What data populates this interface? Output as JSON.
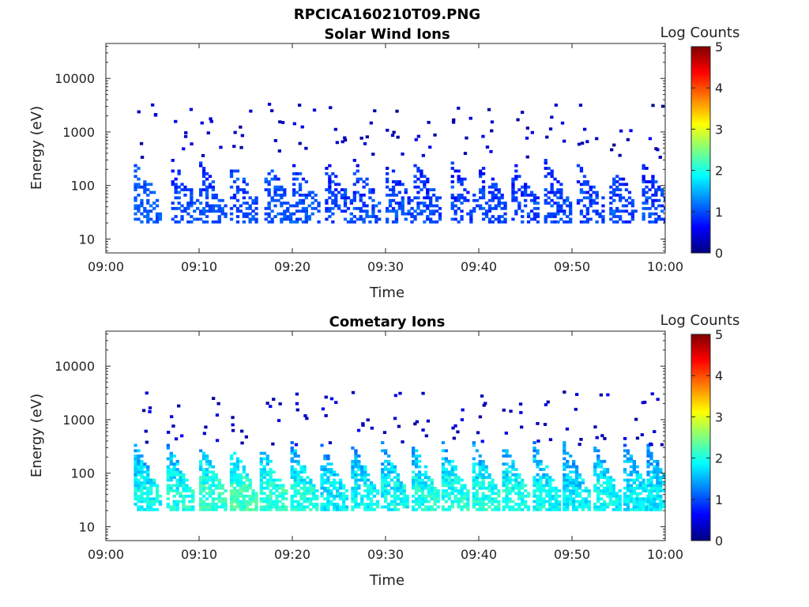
{
  "title": "RPCICA160210T09.PNG",
  "colorbar": {
    "colors": [
      "#00007f",
      "#0000ff",
      "#007fff",
      "#00ffff",
      "#7fff7f",
      "#ffff00",
      "#ff7f00",
      "#ff0000",
      "#7f0000"
    ]
  },
  "chart_data": [
    {
      "type": "heatmap",
      "title": "Solar Wind Ions",
      "xlabel": "Time",
      "ylabel": "Energy (eV)",
      "x_ticks": [
        "09:00",
        "09:10",
        "09:20",
        "09:30",
        "09:40",
        "09:50",
        "10:00"
      ],
      "x_range_min": [
        0,
        60
      ],
      "y_ticks": [
        "10",
        "100",
        "1000",
        "10000"
      ],
      "y_scale": "log",
      "y_range_ev": [
        5.5,
        45000
      ],
      "colorbar_label": "Log Counts",
      "colorbar_ticks": [
        "0",
        "1",
        "2",
        "3",
        "4",
        "5"
      ],
      "colorbar_range": [
        0,
        5
      ],
      "bursts": [
        {
          "t": 3.5,
          "peak": 1.3
        },
        {
          "t": 7.5,
          "peak": 1.1
        },
        {
          "t": 10.5,
          "peak": 1.1
        },
        {
          "t": 13.8,
          "peak": 1.1
        },
        {
          "t": 17.5,
          "peak": 1.2
        },
        {
          "t": 20.5,
          "peak": 1.1
        },
        {
          "t": 24.0,
          "peak": 1.0
        },
        {
          "t": 27.0,
          "peak": 1.0
        },
        {
          "t": 30.5,
          "peak": 1.0
        },
        {
          "t": 33.5,
          "peak": 1.0
        },
        {
          "t": 37.5,
          "peak": 1.0
        },
        {
          "t": 40.5,
          "peak": 1.0
        },
        {
          "t": 44.0,
          "peak": 1.0
        },
        {
          "t": 47.5,
          "peak": 1.0
        },
        {
          "t": 51.0,
          "peak": 1.0
        },
        {
          "t": 54.5,
          "peak": 1.0
        },
        {
          "t": 58.0,
          "peak": 1.0
        }
      ],
      "peak_energy_ev": [
        25,
        40
      ]
    },
    {
      "type": "heatmap",
      "title": "Cometary Ions",
      "xlabel": "Time",
      "ylabel": "Energy (eV)",
      "x_ticks": [
        "09:00",
        "09:10",
        "09:20",
        "09:30",
        "09:40",
        "09:50",
        "10:00"
      ],
      "x_range_min": [
        0,
        60
      ],
      "y_ticks": [
        "10",
        "100",
        "1000",
        "10000"
      ],
      "y_scale": "log",
      "y_range_ev": [
        5.5,
        45000
      ],
      "colorbar_label": "Log Counts",
      "colorbar_ticks": [
        "0",
        "1",
        "2",
        "3",
        "4",
        "5"
      ],
      "colorbar_range": [
        0,
        5
      ],
      "bursts": [
        {
          "t": 3.5,
          "peak": 1.9
        },
        {
          "t": 7.0,
          "peak": 2.0
        },
        {
          "t": 10.5,
          "peak": 2.1
        },
        {
          "t": 13.8,
          "peak": 2.2
        },
        {
          "t": 17.0,
          "peak": 2.1
        },
        {
          "t": 20.3,
          "peak": 2.0
        },
        {
          "t": 23.5,
          "peak": 1.8
        },
        {
          "t": 26.8,
          "peak": 1.9
        },
        {
          "t": 30.0,
          "peak": 1.9
        },
        {
          "t": 33.3,
          "peak": 2.0
        },
        {
          "t": 36.5,
          "peak": 2.0
        },
        {
          "t": 39.8,
          "peak": 2.0
        },
        {
          "t": 43.0,
          "peak": 2.0
        },
        {
          "t": 46.3,
          "peak": 1.9
        },
        {
          "t": 49.5,
          "peak": 1.8
        },
        {
          "t": 52.8,
          "peak": 1.9
        },
        {
          "t": 56.0,
          "peak": 1.8
        },
        {
          "t": 58.5,
          "peak": 1.8
        }
      ],
      "peak_energy_ev": [
        25,
        45
      ]
    }
  ]
}
